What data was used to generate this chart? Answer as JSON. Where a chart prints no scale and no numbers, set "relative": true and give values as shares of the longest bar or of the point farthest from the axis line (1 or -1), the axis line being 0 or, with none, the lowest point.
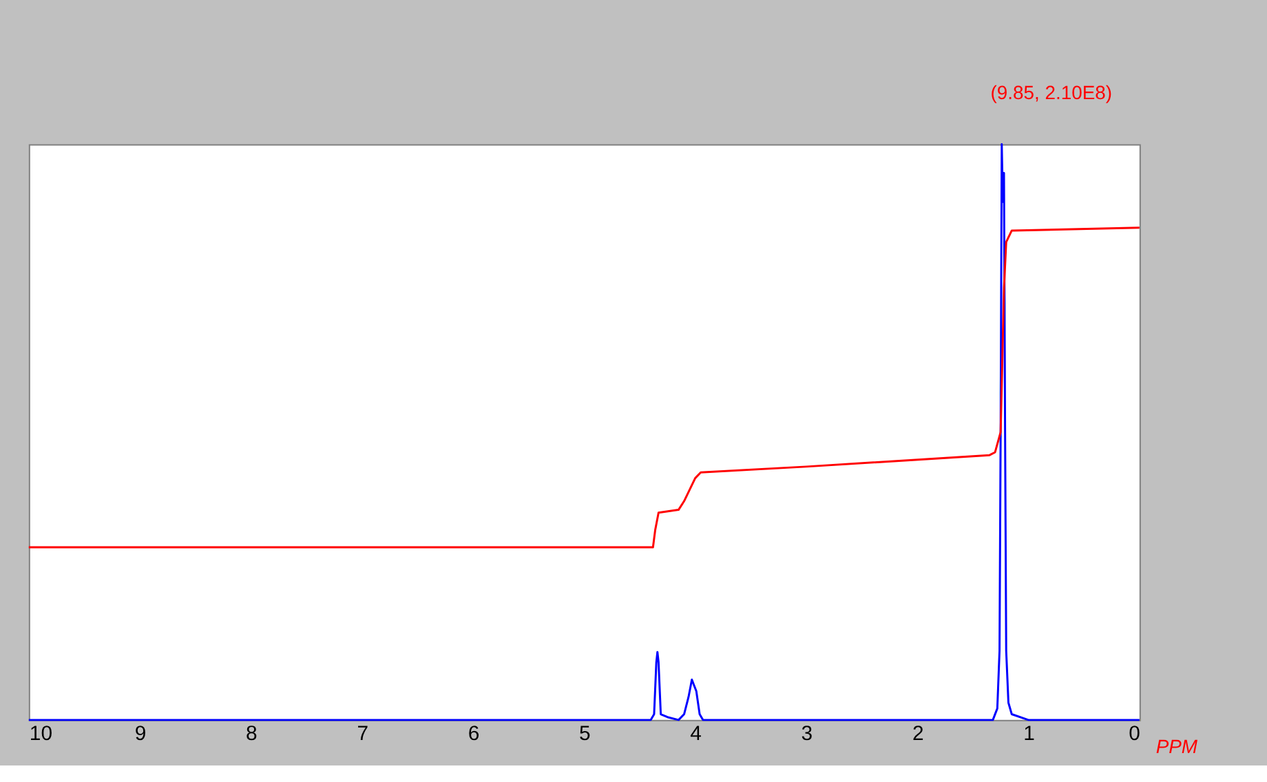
{
  "chart_data": {
    "type": "line",
    "relative": true,
    "xlabel": "PPM",
    "annotations": [
      "(9.85, 2.10E8)"
    ],
    "xlim": [
      10,
      0
    ],
    "xticks": [
      10,
      9,
      8,
      7,
      6,
      5,
      4,
      3,
      2,
      1,
      0
    ],
    "grid": false,
    "marker": "none",
    "line_style": "solid",
    "series": [
      {
        "color": "#0000ff",
        "x": [
          10,
          4.4,
          4.37,
          4.35,
          4.34,
          4.33,
          4.31,
          4.25,
          4.15,
          4.1,
          4.06,
          4.03,
          4.01,
          3.99,
          3.96,
          3.93,
          1.32,
          1.28,
          1.26,
          1.25,
          1.24,
          1.23,
          1.22,
          1.21,
          1.2,
          1.18,
          1.15,
          1.0,
          0
        ],
        "values": [
          0,
          0,
          0.01,
          0.1,
          0.118,
          0.1,
          0.01,
          0.005,
          0,
          0.01,
          0.04,
          0.07,
          0.06,
          0.05,
          0.01,
          0,
          0,
          0.02,
          0.12,
          0.5,
          1.0,
          0.9,
          0.95,
          0.5,
          0.12,
          0.03,
          0.01,
          0,
          0
        ]
      },
      {
        "color": "#ff0000",
        "x": [
          10,
          4.38,
          4.36,
          4.33,
          4.15,
          4.1,
          4.0,
          3.95,
          3.0,
          1.35,
          1.3,
          1.25,
          1.22,
          1.2,
          1.15,
          0
        ],
        "values": [
          0.3,
          0.3,
          0.33,
          0.36,
          0.365,
          0.38,
          0.42,
          0.43,
          0.44,
          0.46,
          0.465,
          0.5,
          0.75,
          0.83,
          0.85,
          0.855
        ]
      }
    ]
  }
}
